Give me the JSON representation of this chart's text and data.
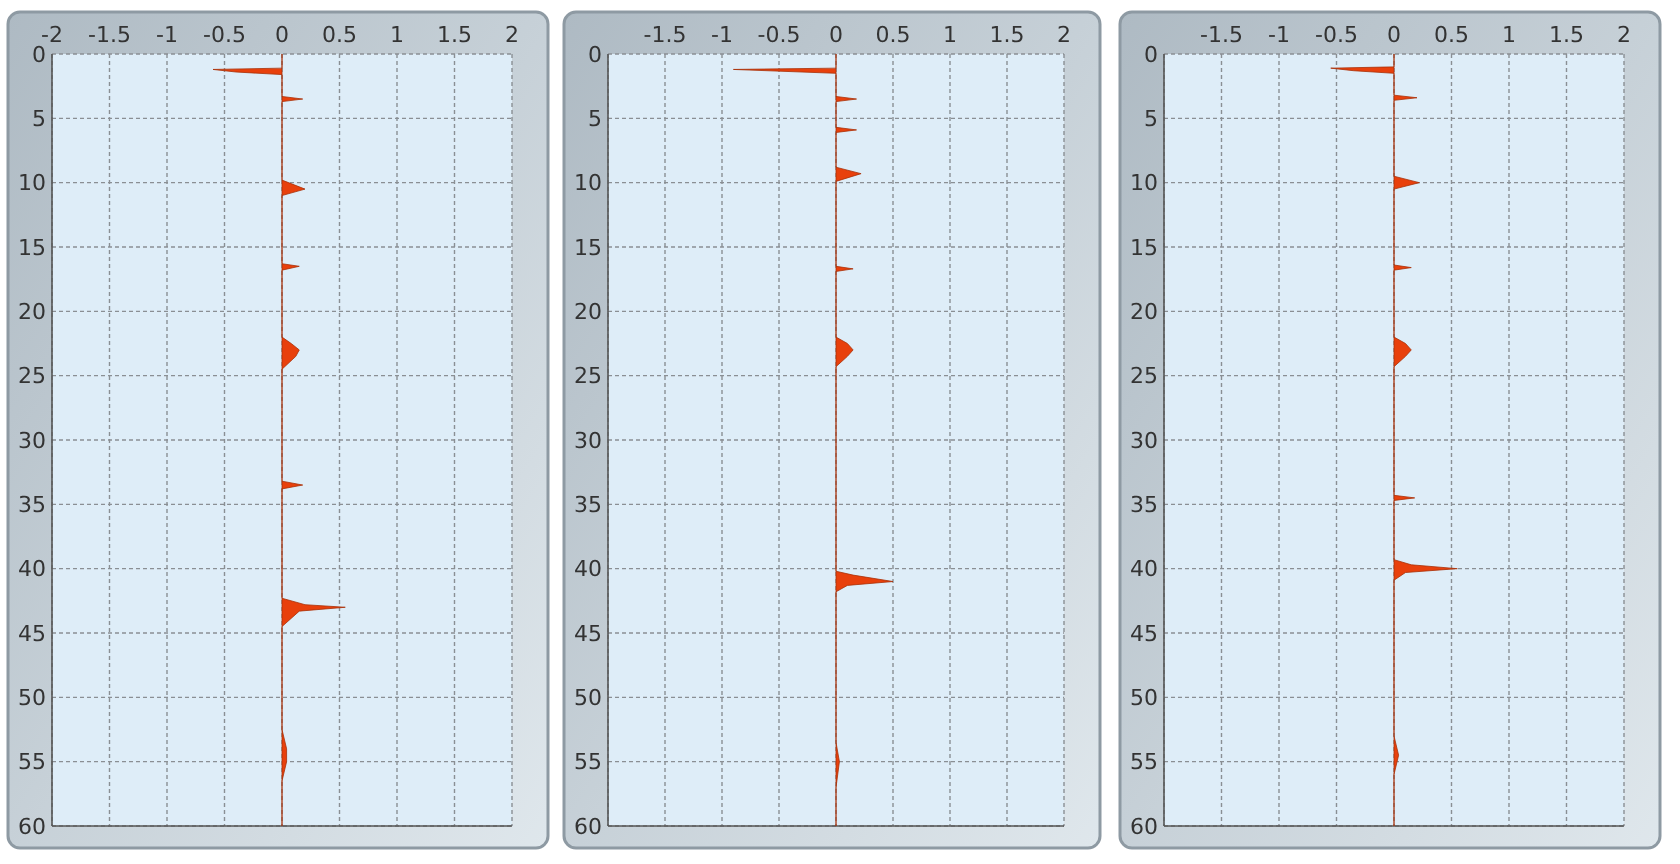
{
  "chart_data": [
    {
      "type": "area",
      "orientation": "horizontal",
      "xlim": [
        -2,
        2
      ],
      "xticks": [
        -2,
        -1.5,
        -1,
        -0.5,
        0,
        0.5,
        1,
        1.5,
        2
      ],
      "ylim": [
        60,
        0
      ],
      "yticks": [
        0,
        5,
        10,
        15,
        20,
        25,
        30,
        35,
        40,
        45,
        50,
        55,
        60
      ],
      "grid": true,
      "series": [
        {
          "color": "#e8400c",
          "x": [
            0,
            1.1,
            1.2,
            1.4,
            1.6,
            3.3,
            3.5,
            3.7,
            9.8,
            10.5,
            11,
            16.3,
            16.5,
            16.8,
            22,
            22.5,
            23,
            23.5,
            24.5,
            33.2,
            33.5,
            33.8,
            42.3,
            42.8,
            43,
            43.3,
            44.5,
            52.5,
            54,
            55,
            56.5,
            60
          ],
          "values": [
            0,
            0,
            -0.6,
            -0.4,
            0,
            0,
            0.18,
            0,
            0,
            0.2,
            0,
            0,
            0.15,
            0,
            0,
            0.08,
            0.15,
            0.12,
            0,
            0,
            0.18,
            0,
            0,
            0.2,
            0.55,
            0.15,
            0,
            0,
            0.04,
            0.04,
            0,
            0
          ]
        }
      ]
    },
    {
      "type": "area",
      "orientation": "horizontal",
      "xlim": [
        -2,
        2
      ],
      "xticks": [
        {
          "value": -2,
          "label": null
        },
        -1.5,
        -1,
        -0.5,
        0,
        0.5,
        1,
        1.5,
        2
      ],
      "ylim": [
        60,
        0
      ],
      "yticks": [
        0,
        5,
        10,
        15,
        20,
        25,
        30,
        35,
        40,
        45,
        50,
        55,
        60
      ],
      "grid": true,
      "series": [
        {
          "color": "#e8400c",
          "x": [
            0,
            1.1,
            1.2,
            1.5,
            3.3,
            3.5,
            3.7,
            5.7,
            5.9,
            6.1,
            8.8,
            9.3,
            9.9,
            16.5,
            16.7,
            16.9,
            22,
            22.5,
            23,
            23.5,
            24.3,
            40.2,
            40.5,
            41,
            41.3,
            41.8,
            53.5,
            55,
            57,
            60
          ],
          "values": [
            0,
            0,
            -0.9,
            0,
            0,
            0.18,
            0,
            0,
            0.18,
            0,
            0,
            0.22,
            0,
            0,
            0.15,
            0,
            0,
            0.1,
            0.15,
            0.1,
            0,
            0,
            0.15,
            0.5,
            0.1,
            0,
            0,
            0.03,
            0,
            0
          ]
        }
      ]
    },
    {
      "type": "area",
      "orientation": "horizontal",
      "xlim": [
        -2,
        2
      ],
      "xticks": [
        {
          "value": -2,
          "label": null
        },
        -1.5,
        -1,
        -0.5,
        0,
        0.5,
        1,
        1.5,
        2
      ],
      "ylim": [
        60,
        0
      ],
      "yticks": [
        0,
        5,
        10,
        15,
        20,
        25,
        30,
        35,
        40,
        45,
        50,
        55,
        60
      ],
      "grid": true,
      "series": [
        {
          "color": "#e8400c",
          "x": [
            0,
            1,
            1.1,
            1.3,
            1.5,
            3.2,
            3.4,
            3.6,
            9.5,
            10,
            10.5,
            16.4,
            16.6,
            16.8,
            22,
            22.5,
            23,
            23.5,
            24.3,
            34.3,
            34.5,
            34.7,
            39.3,
            39.7,
            40,
            40.3,
            40.9,
            53,
            54.5,
            56,
            60
          ],
          "values": [
            0,
            0,
            -0.55,
            -0.35,
            0,
            0,
            0.2,
            0,
            0,
            0.22,
            0,
            0,
            0.15,
            0,
            0,
            0.1,
            0.15,
            0.1,
            0,
            0,
            0.18,
            0,
            0,
            0.15,
            0.55,
            0.1,
            0,
            0,
            0.04,
            0,
            0
          ]
        }
      ]
    }
  ]
}
